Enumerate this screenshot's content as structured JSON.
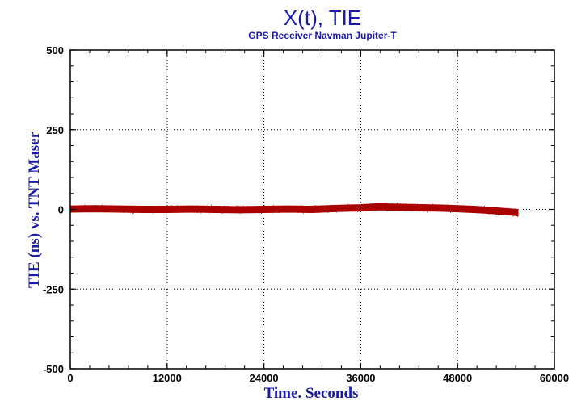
{
  "chart_data": {
    "type": "line",
    "title": "X(t), TIE",
    "subtitle": "GPS Receiver Navman Jupiter-T",
    "xlabel": "Time. Seconds",
    "ylabel": "TIE (ns) vs. TNT Maser",
    "xlim": [
      0,
      60000
    ],
    "ylim": [
      -500,
      500
    ],
    "x_ticks": [
      0,
      12000,
      24000,
      36000,
      48000,
      60000
    ],
    "y_ticks": [
      500,
      250,
      0,
      -250,
      -500
    ],
    "x_tick_labels": [
      "0",
      "12000",
      "24000",
      "36000",
      "48000",
      "60000"
    ],
    "y_tick_labels": [
      "500",
      "250",
      "0",
      "-250",
      "-500"
    ],
    "grid": true,
    "legend": "none",
    "series": [
      {
        "color": "#aa0000",
        "x": [
          0,
          3000,
          6000,
          9000,
          12000,
          15000,
          18000,
          21000,
          24000,
          27000,
          30000,
          33000,
          36000,
          38000,
          40000,
          42000,
          44000,
          46000,
          48000,
          50000,
          52000,
          54000,
          55500
        ],
        "y": [
          1,
          2,
          1,
          0,
          0,
          1,
          0,
          -1,
          0,
          1,
          0,
          3,
          5,
          8,
          7,
          6,
          5,
          4,
          2,
          0,
          -3,
          -7,
          -10
        ],
        "band_halfwidth": 10
      }
    ]
  },
  "colors": {
    "title": "#1a1aa6",
    "series": "#aa0000",
    "grid": "#000000"
  }
}
